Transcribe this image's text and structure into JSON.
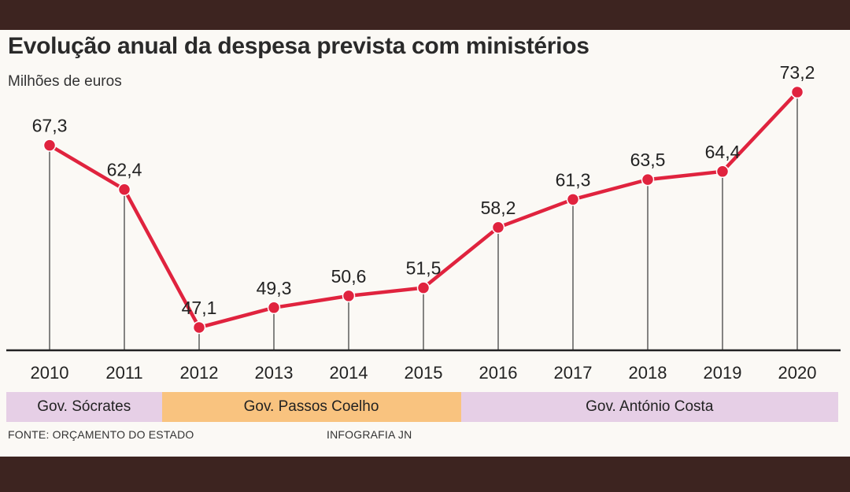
{
  "chart_data": {
    "type": "line",
    "title": "Evolução anual da despesa prevista com ministérios",
    "subtitle": "Milhões de euros",
    "categories": [
      "2010",
      "2011",
      "2012",
      "2013",
      "2014",
      "2015",
      "2016",
      "2017",
      "2018",
      "2019",
      "2020"
    ],
    "values": [
      67.3,
      62.4,
      47.1,
      49.3,
      50.6,
      51.5,
      58.2,
      61.3,
      63.5,
      64.4,
      73.2
    ],
    "value_labels": [
      "67,3",
      "62,4",
      "47,1",
      "49,3",
      "50,6",
      "51,5",
      "58,2",
      "61,3",
      "63,5",
      "64,4",
      "73,2"
    ],
    "line_color": "#e0233e",
    "governments": [
      {
        "label": "Gov. Sócrates",
        "from": "2010",
        "to": "2011",
        "color": "#e6cfe6"
      },
      {
        "label": "Gov. Passos Coelho",
        "from": "2012",
        "to": "2015",
        "color": "#f9c37f"
      },
      {
        "label": "Gov. António Costa",
        "from": "2016",
        "to": "2020",
        "color": "#e6cfe6"
      }
    ]
  },
  "footer": {
    "source": "FONTE: ORÇAMENTO DO ESTADO",
    "credit": "INFOGRAFIA JN"
  }
}
